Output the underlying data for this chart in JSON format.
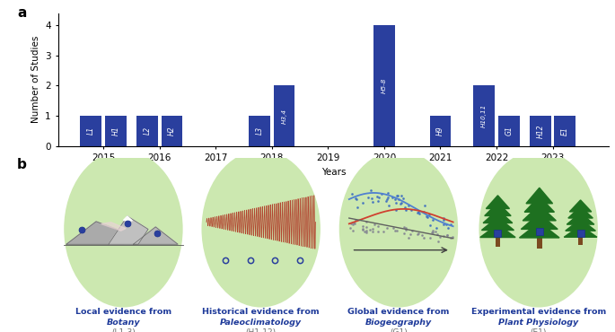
{
  "panel_a_label": "a",
  "panel_b_label": "b",
  "bar_years": [
    2015,
    2015,
    2016,
    2016,
    2018,
    2018,
    2020,
    2021,
    2022,
    2022,
    2023,
    2023
  ],
  "bar_x_offsets": [
    -0.22,
    0.22,
    -0.22,
    0.22,
    -0.22,
    0.22,
    0.0,
    0.0,
    -0.22,
    0.22,
    -0.22,
    0.22
  ],
  "bar_heights": [
    1,
    1,
    1,
    1,
    1,
    2,
    4,
    1,
    2,
    1,
    1,
    1
  ],
  "bar_labels": [
    "L1",
    "H1",
    "L2",
    "H2",
    "L3",
    "H3,4",
    "H5-8",
    "H9",
    "H10,11",
    "G1",
    "H12",
    "E1"
  ],
  "bar_color": "#2a3f9e",
  "bar_width": 0.38,
  "ylabel": "Number of Studies",
  "xlabel": "Years",
  "ylim": [
    0,
    4.4
  ],
  "yticks": [
    0,
    1,
    2,
    3,
    4
  ],
  "year_ticks": [
    2015,
    2016,
    2017,
    2018,
    2019,
    2020,
    2021,
    2022,
    2023
  ],
  "xlim": [
    2014.2,
    2024.0
  ],
  "circle_bg": "#cce8b0",
  "title_color": "#1e3a9a",
  "paren_color": "#707070"
}
